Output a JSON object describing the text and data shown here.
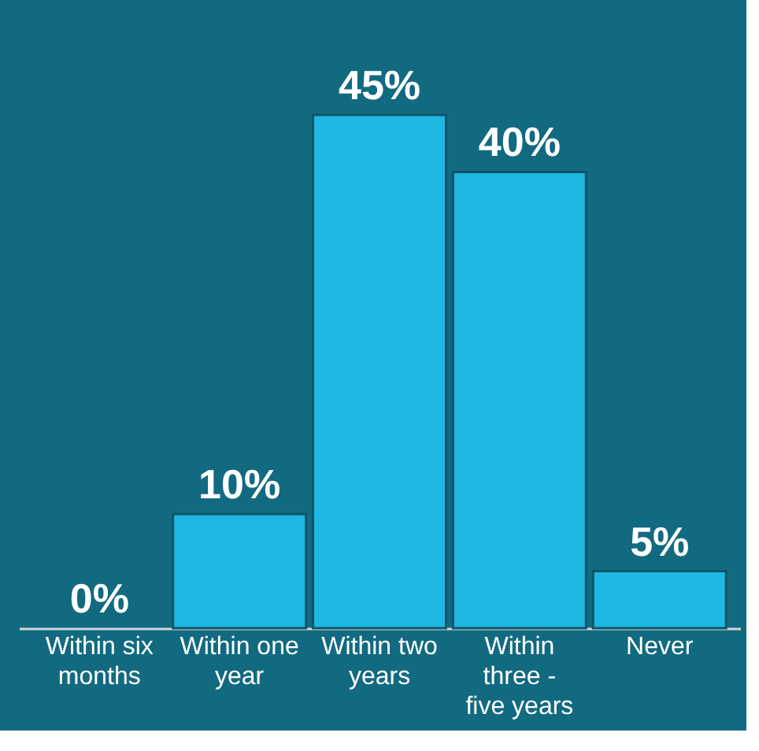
{
  "chart_data": {
    "type": "bar",
    "categories": [
      "Within six months",
      "Within one year",
      "Within two years",
      "Within three - five years",
      "Never"
    ],
    "values": [
      0,
      10,
      45,
      40,
      5
    ],
    "value_labels": [
      "0%",
      "10%",
      "45%",
      "40%",
      "5%"
    ],
    "color": "#1eb8e2"
  }
}
